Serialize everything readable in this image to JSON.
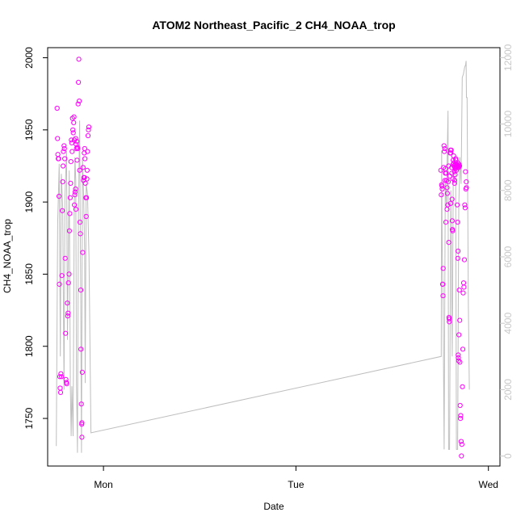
{
  "chart_data": {
    "type": "scatter",
    "title": "ATOM2 Northeast_Pacific_2 CH4_NOAA_trop",
    "xlabel": "Date",
    "ylabel": "CH4_NOAA_trop",
    "x_ticks": [
      "Mon",
      "Tue",
      "Wed"
    ],
    "x_tick_values": [
      1,
      2,
      3
    ],
    "xlim": [
      0.71,
      3.06
    ],
    "ylim": [
      1717,
      2007
    ],
    "y_ticks": [
      1750,
      1800,
      1850,
      1900,
      1950,
      2000
    ],
    "y2lim": [
      -300,
      12300
    ],
    "y2_ticks": [
      0,
      2000,
      4000,
      6000,
      8000,
      10000,
      12000
    ],
    "grid": false,
    "colors": {
      "points": "#ff00ff",
      "altitude_line": "#bebebe",
      "axis": "#000000",
      "right_axis": "#c8c8c8"
    },
    "series": [
      {
        "role": "CH4 points (left axis)",
        "points": [
          [
            0.759,
            1965
          ],
          [
            0.761,
            1944
          ],
          [
            0.763,
            1933
          ],
          [
            0.765,
            1930
          ],
          [
            0.767,
            1930
          ],
          [
            0.769,
            1904
          ],
          [
            0.771,
            1843
          ],
          [
            0.773,
            1779
          ],
          [
            0.775,
            1771
          ],
          [
            0.777,
            1768
          ],
          [
            0.779,
            1781
          ],
          [
            0.782,
            1779
          ],
          [
            0.784,
            1849
          ],
          [
            0.786,
            1894
          ],
          [
            0.788,
            1914
          ],
          [
            0.79,
            1925
          ],
          [
            0.792,
            1935
          ],
          [
            0.795,
            1939
          ],
          [
            0.797,
            1937
          ],
          [
            0.799,
            1930
          ],
          [
            0.801,
            1861
          ],
          [
            0.803,
            1809
          ],
          [
            0.805,
            1777
          ],
          [
            0.807,
            1775
          ],
          [
            0.809,
            1774
          ],
          [
            0.812,
            1830
          ],
          [
            0.814,
            1821
          ],
          [
            0.816,
            1823
          ],
          [
            0.818,
            1844
          ],
          [
            0.821,
            1850
          ],
          [
            0.823,
            1880
          ],
          [
            0.825,
            1892
          ],
          [
            0.827,
            1903
          ],
          [
            0.829,
            1913
          ],
          [
            0.831,
            1928
          ],
          [
            0.833,
            1943
          ],
          [
            0.835,
            1941
          ],
          [
            0.837,
            1935
          ],
          [
            0.839,
            1958
          ],
          [
            0.841,
            1950
          ],
          [
            0.843,
            1948
          ],
          [
            0.845,
            1955
          ],
          [
            0.847,
            1959
          ],
          [
            0.849,
            1943
          ],
          [
            0.851,
            1905
          ],
          [
            0.853,
            1907
          ],
          [
            0.855,
            1909
          ],
          [
            0.857,
            1895
          ],
          [
            0.858,
            1940
          ],
          [
            0.86,
            1937
          ],
          [
            0.862,
            1942
          ],
          [
            0.864,
            1938
          ],
          [
            0.866,
            1937
          ],
          [
            0.868,
            1968
          ],
          [
            0.87,
            1983
          ],
          [
            0.872,
            1999
          ],
          [
            0.874,
            1970
          ],
          [
            0.876,
            1922
          ],
          [
            0.878,
            1886
          ],
          [
            0.88,
            1878
          ],
          [
            0.882,
            1839
          ],
          [
            0.883,
            1798
          ],
          [
            0.885,
            1760
          ],
          [
            0.887,
            1746
          ],
          [
            0.888,
            1747
          ],
          [
            0.89,
            1782
          ],
          [
            0.892,
            1865
          ],
          [
            0.894,
            1924
          ],
          [
            0.896,
            1915
          ],
          [
            0.898,
            1917
          ],
          [
            0.9,
            1934
          ],
          [
            0.902,
            1937
          ],
          [
            0.904,
            1930
          ],
          [
            0.906,
            1913
          ],
          [
            0.908,
            1903
          ],
          [
            0.91,
            1890
          ],
          [
            0.912,
            1903
          ],
          [
            0.914,
            1916
          ],
          [
            0.915,
            1922
          ],
          [
            0.917,
            1935
          ],
          [
            0.92,
            1946
          ],
          [
            0.922,
            1950
          ],
          [
            0.924,
            1952
          ],
          [
            0.849,
            1898
          ],
          [
            0.888,
            1737
          ],
          [
            0.863,
            1929
          ],
          [
            0.855,
            1944
          ],
          [
            0.901,
            1917
          ],
          [
            2.753,
            1922
          ],
          [
            2.755,
            1905
          ],
          [
            2.757,
            1912
          ],
          [
            2.759,
            1911
          ],
          [
            2.76,
            1909
          ],
          [
            2.762,
            1843
          ],
          [
            2.763,
            1843
          ],
          [
            2.764,
            1835
          ],
          [
            2.765,
            1854
          ],
          [
            2.767,
            1924
          ],
          [
            2.769,
            1939
          ],
          [
            2.771,
            1935
          ],
          [
            2.773,
            1937
          ],
          [
            2.774,
            1915
          ],
          [
            2.776,
            1920
          ],
          [
            2.777,
            1923
          ],
          [
            2.779,
            1886
          ],
          [
            2.781,
            1920
          ],
          [
            2.783,
            1915
          ],
          [
            2.785,
            1910
          ],
          [
            2.787,
            1906
          ],
          [
            2.789,
            1898
          ],
          [
            2.791,
            1914
          ],
          [
            2.793,
            1925
          ],
          [
            2.794,
            1872
          ],
          [
            2.795,
            1820
          ],
          [
            2.796,
            1819
          ],
          [
            2.797,
            1817
          ],
          [
            2.799,
            1918
          ],
          [
            2.801,
            1934
          ],
          [
            2.803,
            1936
          ],
          [
            2.805,
            1934
          ],
          [
            2.807,
            1936
          ],
          [
            2.809,
            1924
          ],
          [
            2.81,
            1920
          ],
          [
            2.811,
            1902
          ],
          [
            2.812,
            1887
          ],
          [
            2.813,
            1881
          ],
          [
            2.814,
            1880
          ],
          [
            2.815,
            1916
          ],
          [
            2.817,
            1929
          ],
          [
            2.819,
            1932
          ],
          [
            2.82,
            1927
          ],
          [
            2.821,
            1925
          ],
          [
            2.823,
            1921
          ],
          [
            2.825,
            1915
          ],
          [
            2.827,
            1919
          ],
          [
            2.829,
            1923
          ],
          [
            2.83,
            1930
          ],
          [
            2.832,
            1929
          ],
          [
            2.834,
            1922
          ],
          [
            2.836,
            1926
          ],
          [
            2.838,
            1898
          ],
          [
            2.84,
            1886
          ],
          [
            2.841,
            1861
          ],
          [
            2.842,
            1866
          ],
          [
            2.843,
            1794
          ],
          [
            2.844,
            1792
          ],
          [
            2.845,
            1790
          ],
          [
            2.847,
            1808
          ],
          [
            2.849,
            1839
          ],
          [
            2.851,
            1818
          ],
          [
            2.852,
            1789
          ],
          [
            2.853,
            1759
          ],
          [
            2.855,
            1750
          ],
          [
            2.856,
            1752
          ],
          [
            2.858,
            1734
          ],
          [
            2.86,
            1724
          ],
          [
            2.862,
            1732
          ],
          [
            2.865,
            1772
          ],
          [
            2.867,
            1798
          ],
          [
            2.869,
            1837
          ],
          [
            2.871,
            1844
          ],
          [
            2.873,
            1841
          ],
          [
            2.875,
            1860
          ],
          [
            2.877,
            1898
          ],
          [
            2.879,
            1896
          ],
          [
            2.881,
            1921
          ],
          [
            2.883,
            1909
          ],
          [
            2.885,
            1914
          ],
          [
            2.886,
            1910
          ],
          [
            2.826,
            1924
          ],
          [
            2.828,
            1926
          ],
          [
            2.831,
            1924
          ],
          [
            2.833,
            1925
          ],
          [
            2.835,
            1926
          ],
          [
            2.837,
            1925
          ],
          [
            2.839,
            1924
          ],
          [
            2.842,
            1927
          ],
          [
            2.844,
            1925
          ],
          [
            2.846,
            1924
          ],
          [
            2.848,
            1926
          ],
          [
            2.85,
            1925
          ],
          [
            2.785,
            1895
          ],
          [
            2.804,
            1899
          ],
          [
            2.816,
            1926
          ],
          [
            2.824,
            1913
          ]
        ]
      },
      {
        "role": "altitude line (right axis)",
        "points": [
          [
            0.755,
            300
          ],
          [
            0.762,
            7000
          ],
          [
            0.77,
            8800
          ],
          [
            0.776,
            3000
          ],
          [
            0.781,
            8500
          ],
          [
            0.788,
            7500
          ],
          [
            0.795,
            2000
          ],
          [
            0.8,
            7800
          ],
          [
            0.808,
            9200
          ],
          [
            0.813,
            3500
          ],
          [
            0.822,
            8600
          ],
          [
            0.828,
            2100
          ],
          [
            0.832,
            600
          ],
          [
            0.836,
            2100
          ],
          [
            0.842,
            600
          ],
          [
            0.848,
            7300
          ],
          [
            0.852,
            9000
          ],
          [
            0.856,
            8300
          ],
          [
            0.86,
            2200
          ],
          [
            0.865,
            100
          ],
          [
            0.87,
            7200
          ],
          [
            0.876,
            10100
          ],
          [
            0.882,
            4500
          ],
          [
            0.886,
            100
          ],
          [
            0.891,
            9000
          ],
          [
            0.897,
            7800
          ],
          [
            0.902,
            6200
          ],
          [
            0.905,
            2200
          ],
          [
            0.91,
            8200
          ],
          [
            0.917,
            7900
          ],
          [
            0.925,
            6000
          ],
          [
            0.935,
            700
          ],
          [
            2.755,
            3000
          ],
          [
            2.757,
            9200
          ],
          [
            2.76,
            6300
          ],
          [
            2.764,
            4800
          ],
          [
            2.77,
            200
          ],
          [
            2.776,
            8300
          ],
          [
            2.782,
            7500
          ],
          [
            2.786,
            9000
          ],
          [
            2.79,
            10400
          ],
          [
            2.793,
            200
          ],
          [
            2.798,
            200
          ],
          [
            2.805,
            8000
          ],
          [
            2.812,
            3000
          ],
          [
            2.818,
            9000
          ],
          [
            2.824,
            8700
          ],
          [
            2.83,
            8400
          ],
          [
            2.834,
            200
          ],
          [
            2.84,
            200
          ],
          [
            2.846,
            7500
          ],
          [
            2.852,
            9000
          ],
          [
            2.858,
            8200
          ],
          [
            2.864,
            11400
          ],
          [
            2.87,
            11500
          ],
          [
            2.876,
            11700
          ],
          [
            2.882,
            11800
          ],
          [
            2.884,
            11900
          ],
          [
            2.886,
            10800
          ],
          [
            2.889,
            10800
          ],
          [
            2.896,
            4500
          ],
          [
            2.898,
            3500
          ],
          [
            2.901,
            2000
          ]
        ]
      }
    ]
  }
}
